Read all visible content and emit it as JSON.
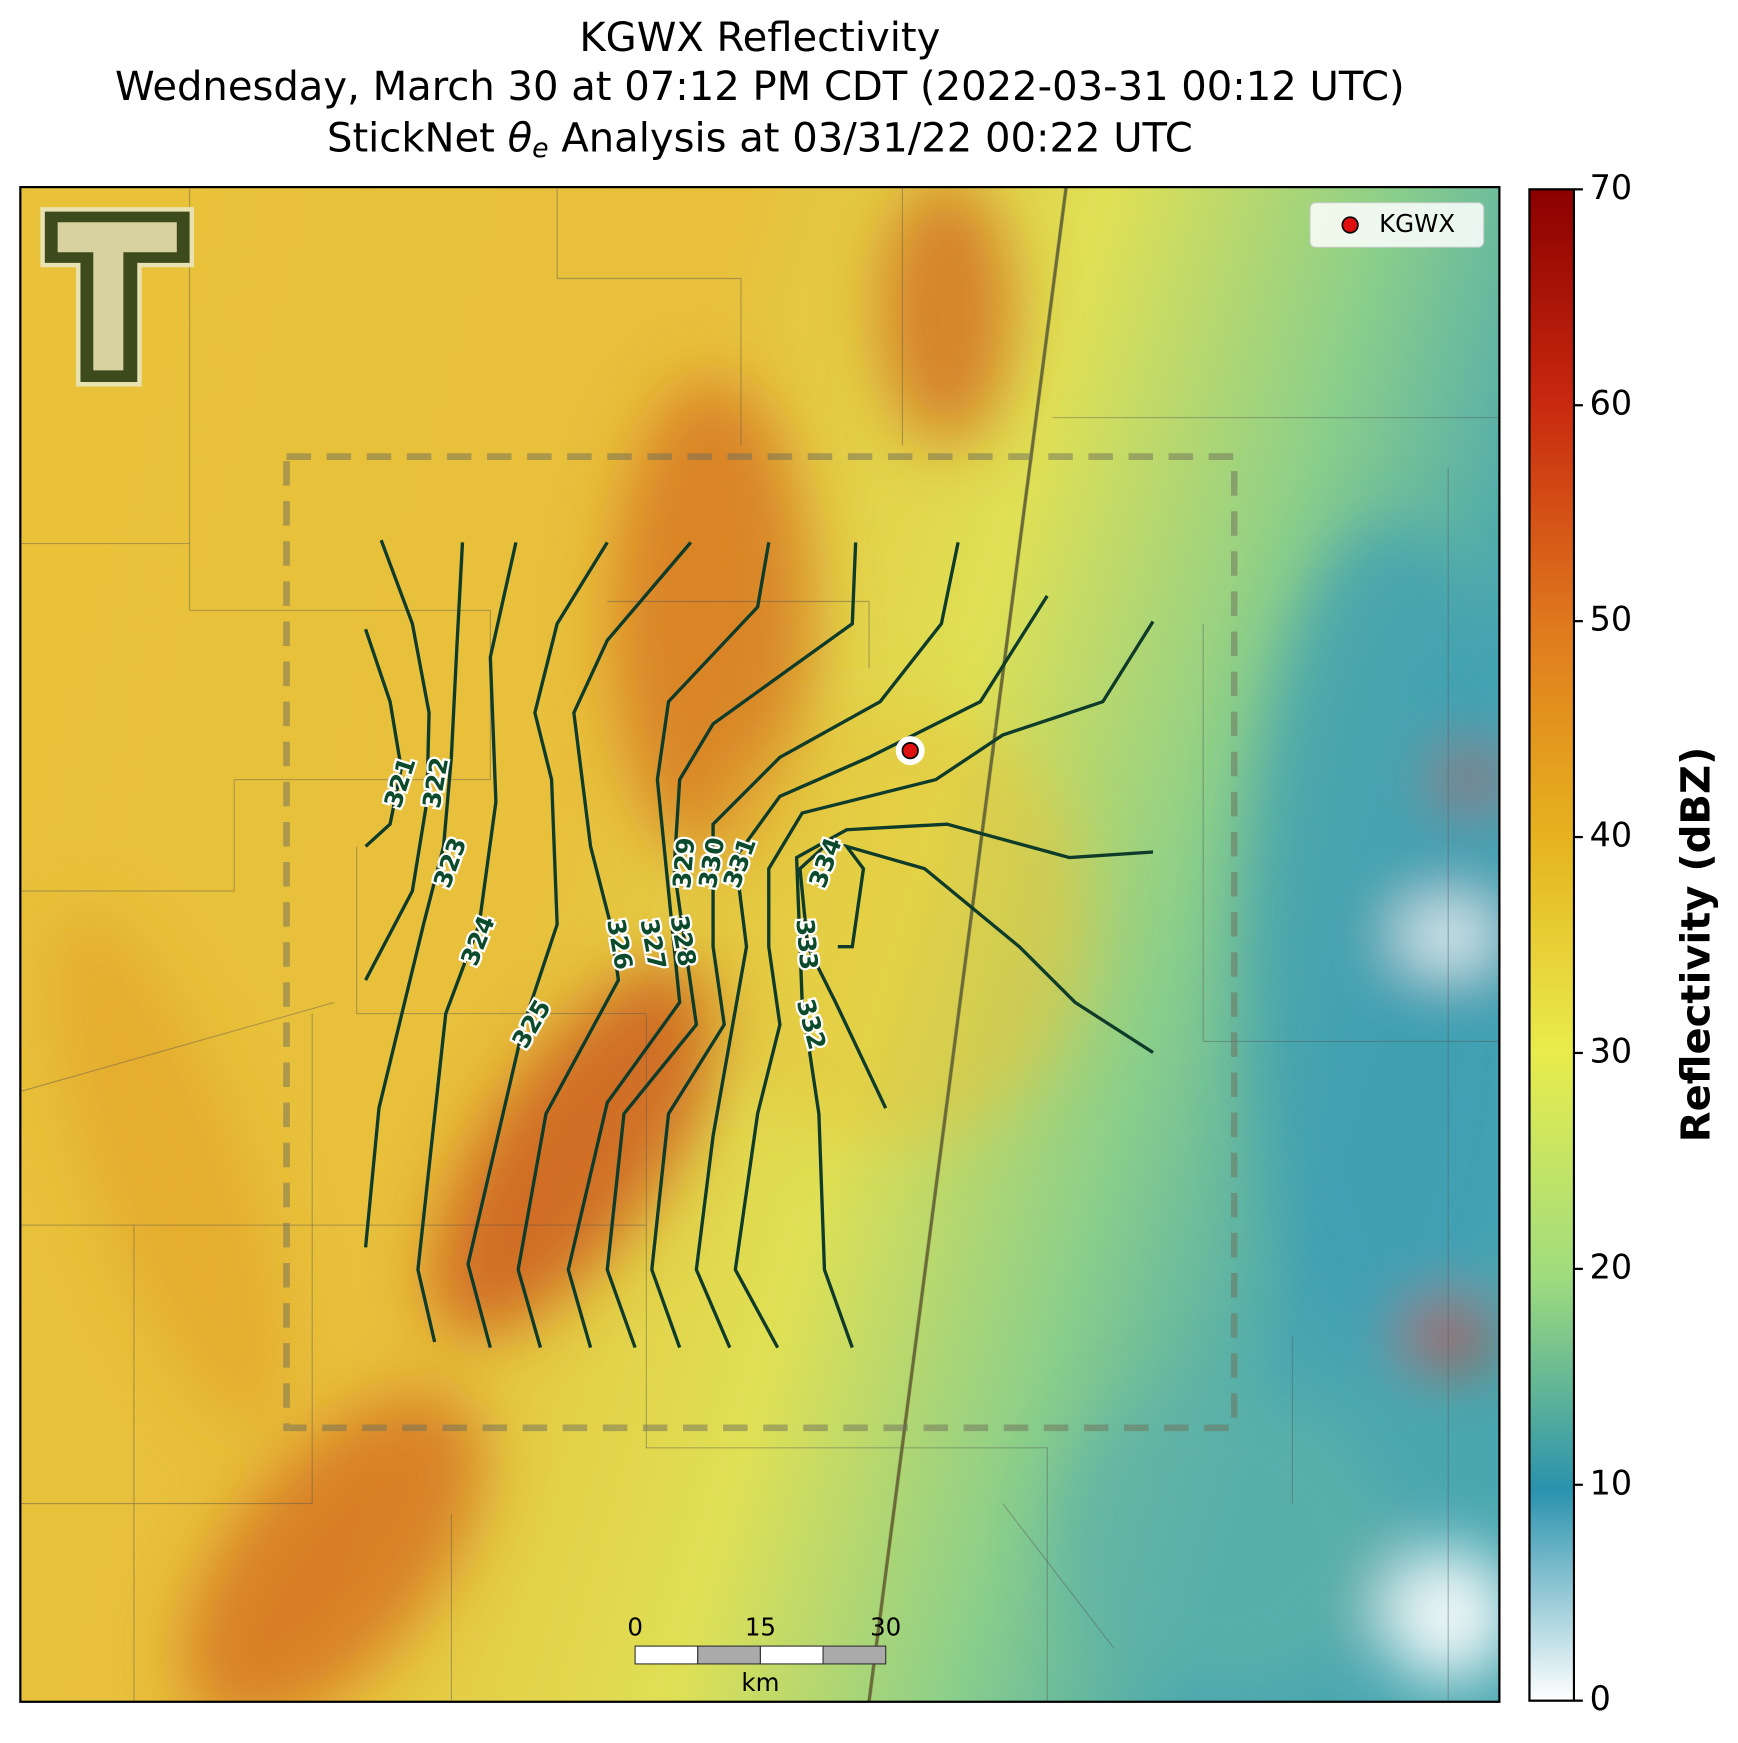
{
  "title": {
    "line1": "KGWX Reflectivity",
    "line2": "Wednesday, March 30 at 07:12 PM CDT (2022-03-31 00:12 UTC)",
    "line3": {
      "before": "StickNet ",
      "symbol": "θ",
      "subscript": "e",
      "after": " Analysis at 03/31/22 00:22 UTC"
    }
  },
  "legend": {
    "label": "KGWX"
  },
  "colorbar": {
    "label": "Reflectivity (dBZ)",
    "lim": [
      0,
      70
    ],
    "ticks": [
      0,
      10,
      20,
      30,
      40,
      50,
      60,
      70
    ]
  },
  "contour_labels": [
    321,
    322,
    323,
    324,
    325,
    326,
    327,
    328,
    329,
    330,
    331,
    332,
    333,
    334
  ],
  "scale_bar": {
    "ticks": [
      0,
      15,
      30
    ],
    "unit": "km"
  }
}
